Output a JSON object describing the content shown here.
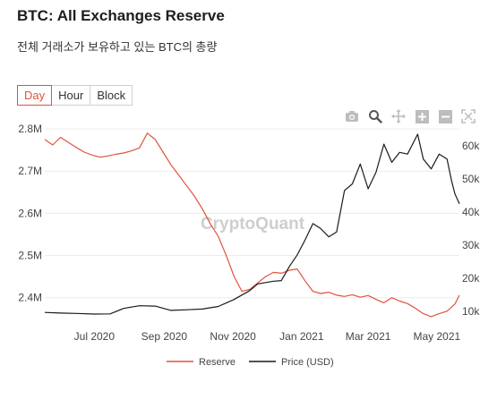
{
  "header": {
    "title": "BTC: All Exchanges Reserve",
    "subtitle": "전체 거래소가 보유하고 있는 BTC의 총량"
  },
  "range_buttons": [
    {
      "label": "Day",
      "active": true
    },
    {
      "label": "Hour",
      "active": false
    },
    {
      "label": "Block",
      "active": false
    }
  ],
  "toolbar_icons": [
    "camera-icon",
    "zoom-icon",
    "pan-icon",
    "zoom-in-icon",
    "zoom-out-icon",
    "reset-axes-icon"
  ],
  "watermark": "CryptoQuant",
  "chart_data": {
    "type": "line",
    "title": "BTC: All Exchanges Reserve",
    "x_ticks": [
      "Jul 2020",
      "Sep 2020",
      "Nov 2020",
      "Jan 2021",
      "Mar 2021",
      "May 2021"
    ],
    "y_left": {
      "ticks": [
        "2.4M",
        "2.5M",
        "2.6M",
        "2.7M",
        "2.8M"
      ],
      "tick_values": [
        2400000,
        2500000,
        2600000,
        2700000,
        2800000
      ],
      "range": [
        2340000,
        2815000
      ]
    },
    "y_right": {
      "ticks": [
        "10k",
        "20k",
        "30k",
        "40k",
        "50k",
        "60k"
      ],
      "tick_values": [
        10000,
        20000,
        30000,
        40000,
        50000,
        60000
      ],
      "range": [
        6500,
        67000
      ]
    },
    "x_range": [
      "2020-05-18",
      "2021-05-21"
    ],
    "legend_position": "bottom",
    "series": [
      {
        "name": "Reserve",
        "axis": "left",
        "color": "#e0533c",
        "points": [
          [
            "2020-05-18",
            2775000
          ],
          [
            "2020-05-25",
            2762000
          ],
          [
            "2020-06-01",
            2780000
          ],
          [
            "2020-06-08",
            2768000
          ],
          [
            "2020-06-15",
            2756000
          ],
          [
            "2020-06-22",
            2745000
          ],
          [
            "2020-06-29",
            2738000
          ],
          [
            "2020-07-06",
            2733000
          ],
          [
            "2020-07-13",
            2736000
          ],
          [
            "2020-07-20",
            2740000
          ],
          [
            "2020-07-27",
            2743000
          ],
          [
            "2020-08-03",
            2748000
          ],
          [
            "2020-08-10",
            2755000
          ],
          [
            "2020-08-17",
            2790000
          ],
          [
            "2020-08-24",
            2775000
          ],
          [
            "2020-08-31",
            2745000
          ],
          [
            "2020-09-07",
            2715000
          ],
          [
            "2020-09-14",
            2690000
          ],
          [
            "2020-09-21",
            2665000
          ],
          [
            "2020-09-28",
            2640000
          ],
          [
            "2020-10-05",
            2610000
          ],
          [
            "2020-10-12",
            2575000
          ],
          [
            "2020-10-19",
            2545000
          ],
          [
            "2020-10-26",
            2500000
          ],
          [
            "2020-11-02",
            2450000
          ],
          [
            "2020-11-09",
            2415000
          ],
          [
            "2020-11-16",
            2420000
          ],
          [
            "2020-11-23",
            2435000
          ],
          [
            "2020-11-30",
            2450000
          ],
          [
            "2020-12-07",
            2460000
          ],
          [
            "2020-12-14",
            2458000
          ],
          [
            "2020-12-21",
            2465000
          ],
          [
            "2020-12-28",
            2468000
          ],
          [
            "2021-01-04",
            2440000
          ],
          [
            "2021-01-11",
            2415000
          ],
          [
            "2021-01-18",
            2410000
          ],
          [
            "2021-01-25",
            2413000
          ],
          [
            "2021-02-01",
            2406000
          ],
          [
            "2021-02-08",
            2403000
          ],
          [
            "2021-02-15",
            2407000
          ],
          [
            "2021-02-22",
            2401000
          ],
          [
            "2021-03-01",
            2405000
          ],
          [
            "2021-03-08",
            2396000
          ],
          [
            "2021-03-15",
            2388000
          ],
          [
            "2021-03-22",
            2400000
          ],
          [
            "2021-03-29",
            2392000
          ],
          [
            "2021-04-05",
            2386000
          ],
          [
            "2021-04-12",
            2375000
          ],
          [
            "2021-04-19",
            2362000
          ],
          [
            "2021-04-26",
            2355000
          ],
          [
            "2021-05-03",
            2362000
          ],
          [
            "2021-05-10",
            2368000
          ],
          [
            "2021-05-17",
            2385000
          ],
          [
            "2021-05-21",
            2406000
          ]
        ]
      },
      {
        "name": "Price (USD)",
        "axis": "right",
        "color": "#1a1a1a",
        "points": [
          [
            "2020-05-18",
            9700
          ],
          [
            "2020-06-01",
            9500
          ],
          [
            "2020-06-15",
            9400
          ],
          [
            "2020-07-01",
            9200
          ],
          [
            "2020-07-15",
            9250
          ],
          [
            "2020-07-27",
            10900
          ],
          [
            "2020-08-10",
            11700
          ],
          [
            "2020-08-24",
            11600
          ],
          [
            "2020-09-07",
            10300
          ],
          [
            "2020-09-21",
            10500
          ],
          [
            "2020-10-05",
            10700
          ],
          [
            "2020-10-19",
            11500
          ],
          [
            "2020-11-02",
            13600
          ],
          [
            "2020-11-16",
            16300
          ],
          [
            "2020-11-23",
            18300
          ],
          [
            "2020-12-07",
            19100
          ],
          [
            "2020-12-14",
            19300
          ],
          [
            "2020-12-21",
            23500
          ],
          [
            "2020-12-28",
            27000
          ],
          [
            "2021-01-04",
            31500
          ],
          [
            "2021-01-11",
            36500
          ],
          [
            "2021-01-18",
            35000
          ],
          [
            "2021-01-25",
            32500
          ],
          [
            "2021-02-01",
            34000
          ],
          [
            "2021-02-08",
            46500
          ],
          [
            "2021-02-15",
            48500
          ],
          [
            "2021-02-22",
            54500
          ],
          [
            "2021-03-01",
            47000
          ],
          [
            "2021-03-08",
            52000
          ],
          [
            "2021-03-15",
            60500
          ],
          [
            "2021-03-22",
            55000
          ],
          [
            "2021-03-29",
            58000
          ],
          [
            "2021-04-05",
            57500
          ],
          [
            "2021-04-14",
            63500
          ],
          [
            "2021-04-19",
            56000
          ],
          [
            "2021-04-26",
            53000
          ],
          [
            "2021-05-03",
            57500
          ],
          [
            "2021-05-10",
            56000
          ],
          [
            "2021-05-14",
            49500
          ],
          [
            "2021-05-17",
            45500
          ],
          [
            "2021-05-21",
            42500
          ]
        ]
      }
    ]
  }
}
